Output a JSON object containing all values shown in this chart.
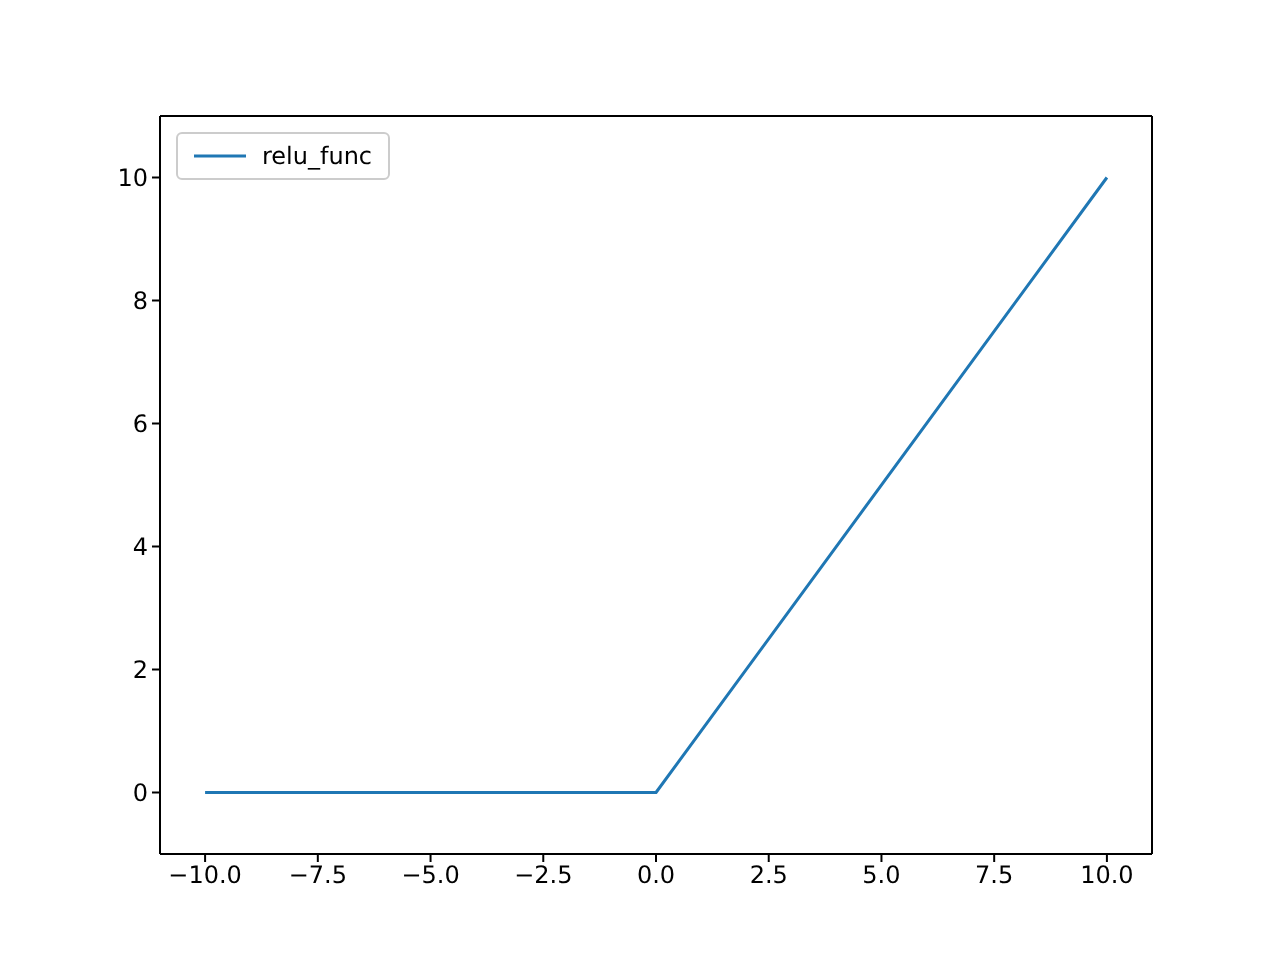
{
  "chart_data": {
    "type": "line",
    "x": [
      -10,
      0,
      10
    ],
    "series": [
      {
        "name": "relu_func",
        "color": "#1f77b4",
        "values": [
          0,
          0,
          10
        ]
      }
    ],
    "xlim": [
      -11,
      11
    ],
    "ylim": [
      -1,
      11
    ],
    "xticks": [
      {
        "value": -10,
        "label": "−10.0"
      },
      {
        "value": -7.5,
        "label": "−7.5"
      },
      {
        "value": -5,
        "label": "−5.0"
      },
      {
        "value": -2.5,
        "label": "−2.5"
      },
      {
        "value": 0,
        "label": "0.0"
      },
      {
        "value": 2.5,
        "label": "2.5"
      },
      {
        "value": 5,
        "label": "5.0"
      },
      {
        "value": 7.5,
        "label": "7.5"
      },
      {
        "value": 10,
        "label": "10.0"
      }
    ],
    "yticks": [
      0,
      2,
      4,
      6,
      8,
      10
    ],
    "legend": "top left",
    "line_style": "solid",
    "marker": "none"
  }
}
